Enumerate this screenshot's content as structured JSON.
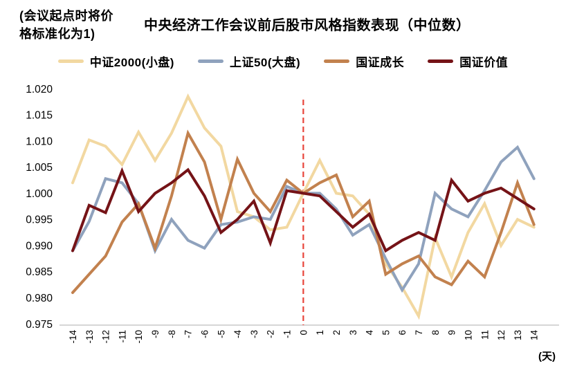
{
  "note": "(会议起点时将价\n格标准化为1)",
  "title": "中央经济工作会议前后股市风格指数表现（中位数）",
  "chart_data": {
    "type": "line",
    "title": "中央经济工作会议前后股市风格指数表现（中位数）",
    "normalization_note": "(会议起点时将价格标准化为1)",
    "x": [
      -14,
      -13,
      -12,
      -11,
      -10,
      -9,
      -8,
      -7,
      -6,
      -5,
      -4,
      -3,
      -2,
      -1,
      0,
      1,
      2,
      3,
      4,
      5,
      6,
      7,
      8,
      9,
      10,
      11,
      12,
      13,
      14
    ],
    "xunit": "(天)",
    "ylim": [
      0.975,
      1.02
    ],
    "ytick_labels": [
      "1.020",
      "1.015",
      "1.010",
      "1.005",
      "1.000",
      "0.995",
      "0.990",
      "0.985",
      "0.980",
      "0.975"
    ],
    "grid": false,
    "legend_position": "top",
    "axis_color": "#c9c9c9",
    "event_line": {
      "x": 0,
      "color": "#e8443a",
      "style": "dashed"
    },
    "series": [
      {
        "name": "中证2000(小盘)",
        "color": "#f2d8a1",
        "values": [
          1.002,
          1.0102,
          1.009,
          1.0055,
          1.0117,
          1.0063,
          1.0115,
          1.0185,
          1.0125,
          1.009,
          0.9965,
          0.9955,
          0.993,
          0.9935,
          1.0,
          1.0063,
          1.0,
          0.9995,
          0.996,
          0.9865,
          0.982,
          0.9765,
          0.9915,
          0.984,
          0.9925,
          0.998,
          0.99,
          0.995,
          0.9935
        ]
      },
      {
        "name": "上证50(大盘)",
        "color": "#8fa2bd",
        "values": [
          0.989,
          0.9946,
          1.0028,
          1.002,
          0.998,
          0.989,
          0.995,
          0.991,
          0.9895,
          0.994,
          0.9945,
          0.9955,
          0.995,
          1.0013,
          1.0,
          1.0,
          0.997,
          0.992,
          0.994,
          0.9875,
          0.9815,
          0.9865,
          1.0,
          0.997,
          0.9955,
          1.0005,
          1.006,
          1.0088,
          1.0028
        ]
      },
      {
        "name": "国证成长",
        "color": "#c2814e",
        "values": [
          0.981,
          0.9845,
          0.988,
          0.9945,
          0.998,
          0.9895,
          0.9995,
          1.0115,
          1.006,
          0.995,
          1.0065,
          1.0,
          0.9965,
          1.0025,
          1.0,
          1.002,
          1.0035,
          0.9955,
          0.9985,
          0.9845,
          0.9865,
          0.988,
          0.984,
          0.9825,
          0.987,
          0.984,
          0.9925,
          1.002,
          0.994
        ]
      },
      {
        "name": "国证价值",
        "color": "#751317",
        "values": [
          0.989,
          0.9977,
          0.9963,
          1.0043,
          0.9965,
          1.0,
          1.002,
          1.0045,
          0.9995,
          0.9925,
          0.995,
          0.9985,
          0.9905,
          1.0005,
          1.0,
          0.9995,
          0.9965,
          0.9935,
          0.996,
          0.989,
          0.991,
          0.9925,
          0.991,
          1.0025,
          0.9985,
          1.0,
          1.001,
          0.999,
          0.997
        ]
      }
    ]
  }
}
